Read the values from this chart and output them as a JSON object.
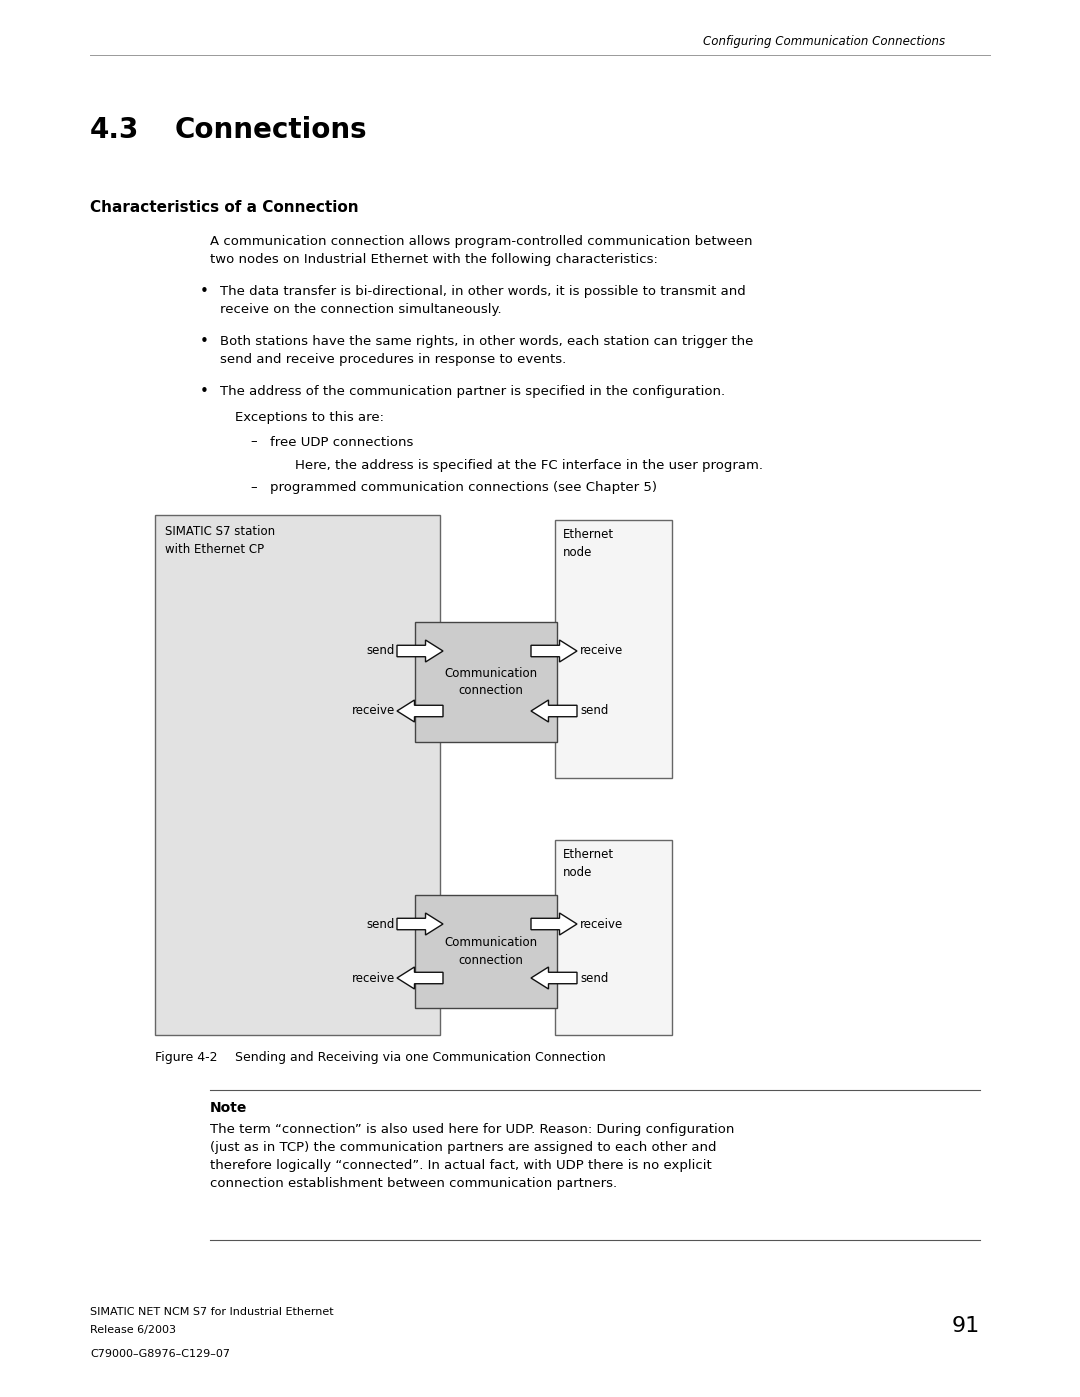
{
  "header_italic": "Configuring Communication Connections",
  "section_number": "4.3",
  "section_title": "Connections",
  "subsection_title": "Characteristics of a Connection",
  "body_text_1a": "A communication connection allows program-controlled communication between",
  "body_text_1b": "two nodes on Industrial Ethernet with the following characteristics:",
  "bullet1a": "The data transfer is bi-directional, in other words, it is possible to transmit and",
  "bullet1b": "receive on the connection simultaneously.",
  "bullet2a": "Both stations have the same rights, in other words, each station can trigger the",
  "bullet2b": "send and receive procedures in response to events.",
  "bullet3": "The address of the communication partner is specified in the configuration.",
  "exceptions_label": "Exceptions to this are:",
  "dash1": "free UDP connections",
  "dash1_note": "Here, the address is specified at the FC interface in the user program.",
  "dash2": "programmed communication connections (see Chapter 5)",
  "diagram_label_left": "SIMATIC S7 station\nwith Ethernet CP",
  "diagram_label_eth1": "Ethernet\nnode",
  "diagram_label_eth2": "Ethernet\nnode",
  "comm_label": "Communication\nconnection",
  "send_label": "send",
  "receive_label": "receive",
  "figure_label": "Figure 4-2",
  "figure_caption": "Sending and Receiving via one Communication Connection",
  "note_title": "Note",
  "note_text": "The term “connection” is also used here for UDP. Reason: During configuration\n(just as in TCP) the communication partners are assigned to each other and\ntherefore logically “connected”. In actual fact, with UDP there is no explicit\nconnection establishment between communication partners.",
  "footer_left_1": "SIMATIC NET NCM S7 for Industrial Ethernet",
  "footer_left_2": "Release 6/2003",
  "footer_left_3": "C79000–G8976–C129–07",
  "footer_page": "91",
  "bg_color": "#ffffff",
  "text_color": "#000000",
  "simatic_box_color": "#e2e2e2",
  "eth_box_color": "#f5f5f5",
  "comm_box_color": "#cccccc"
}
